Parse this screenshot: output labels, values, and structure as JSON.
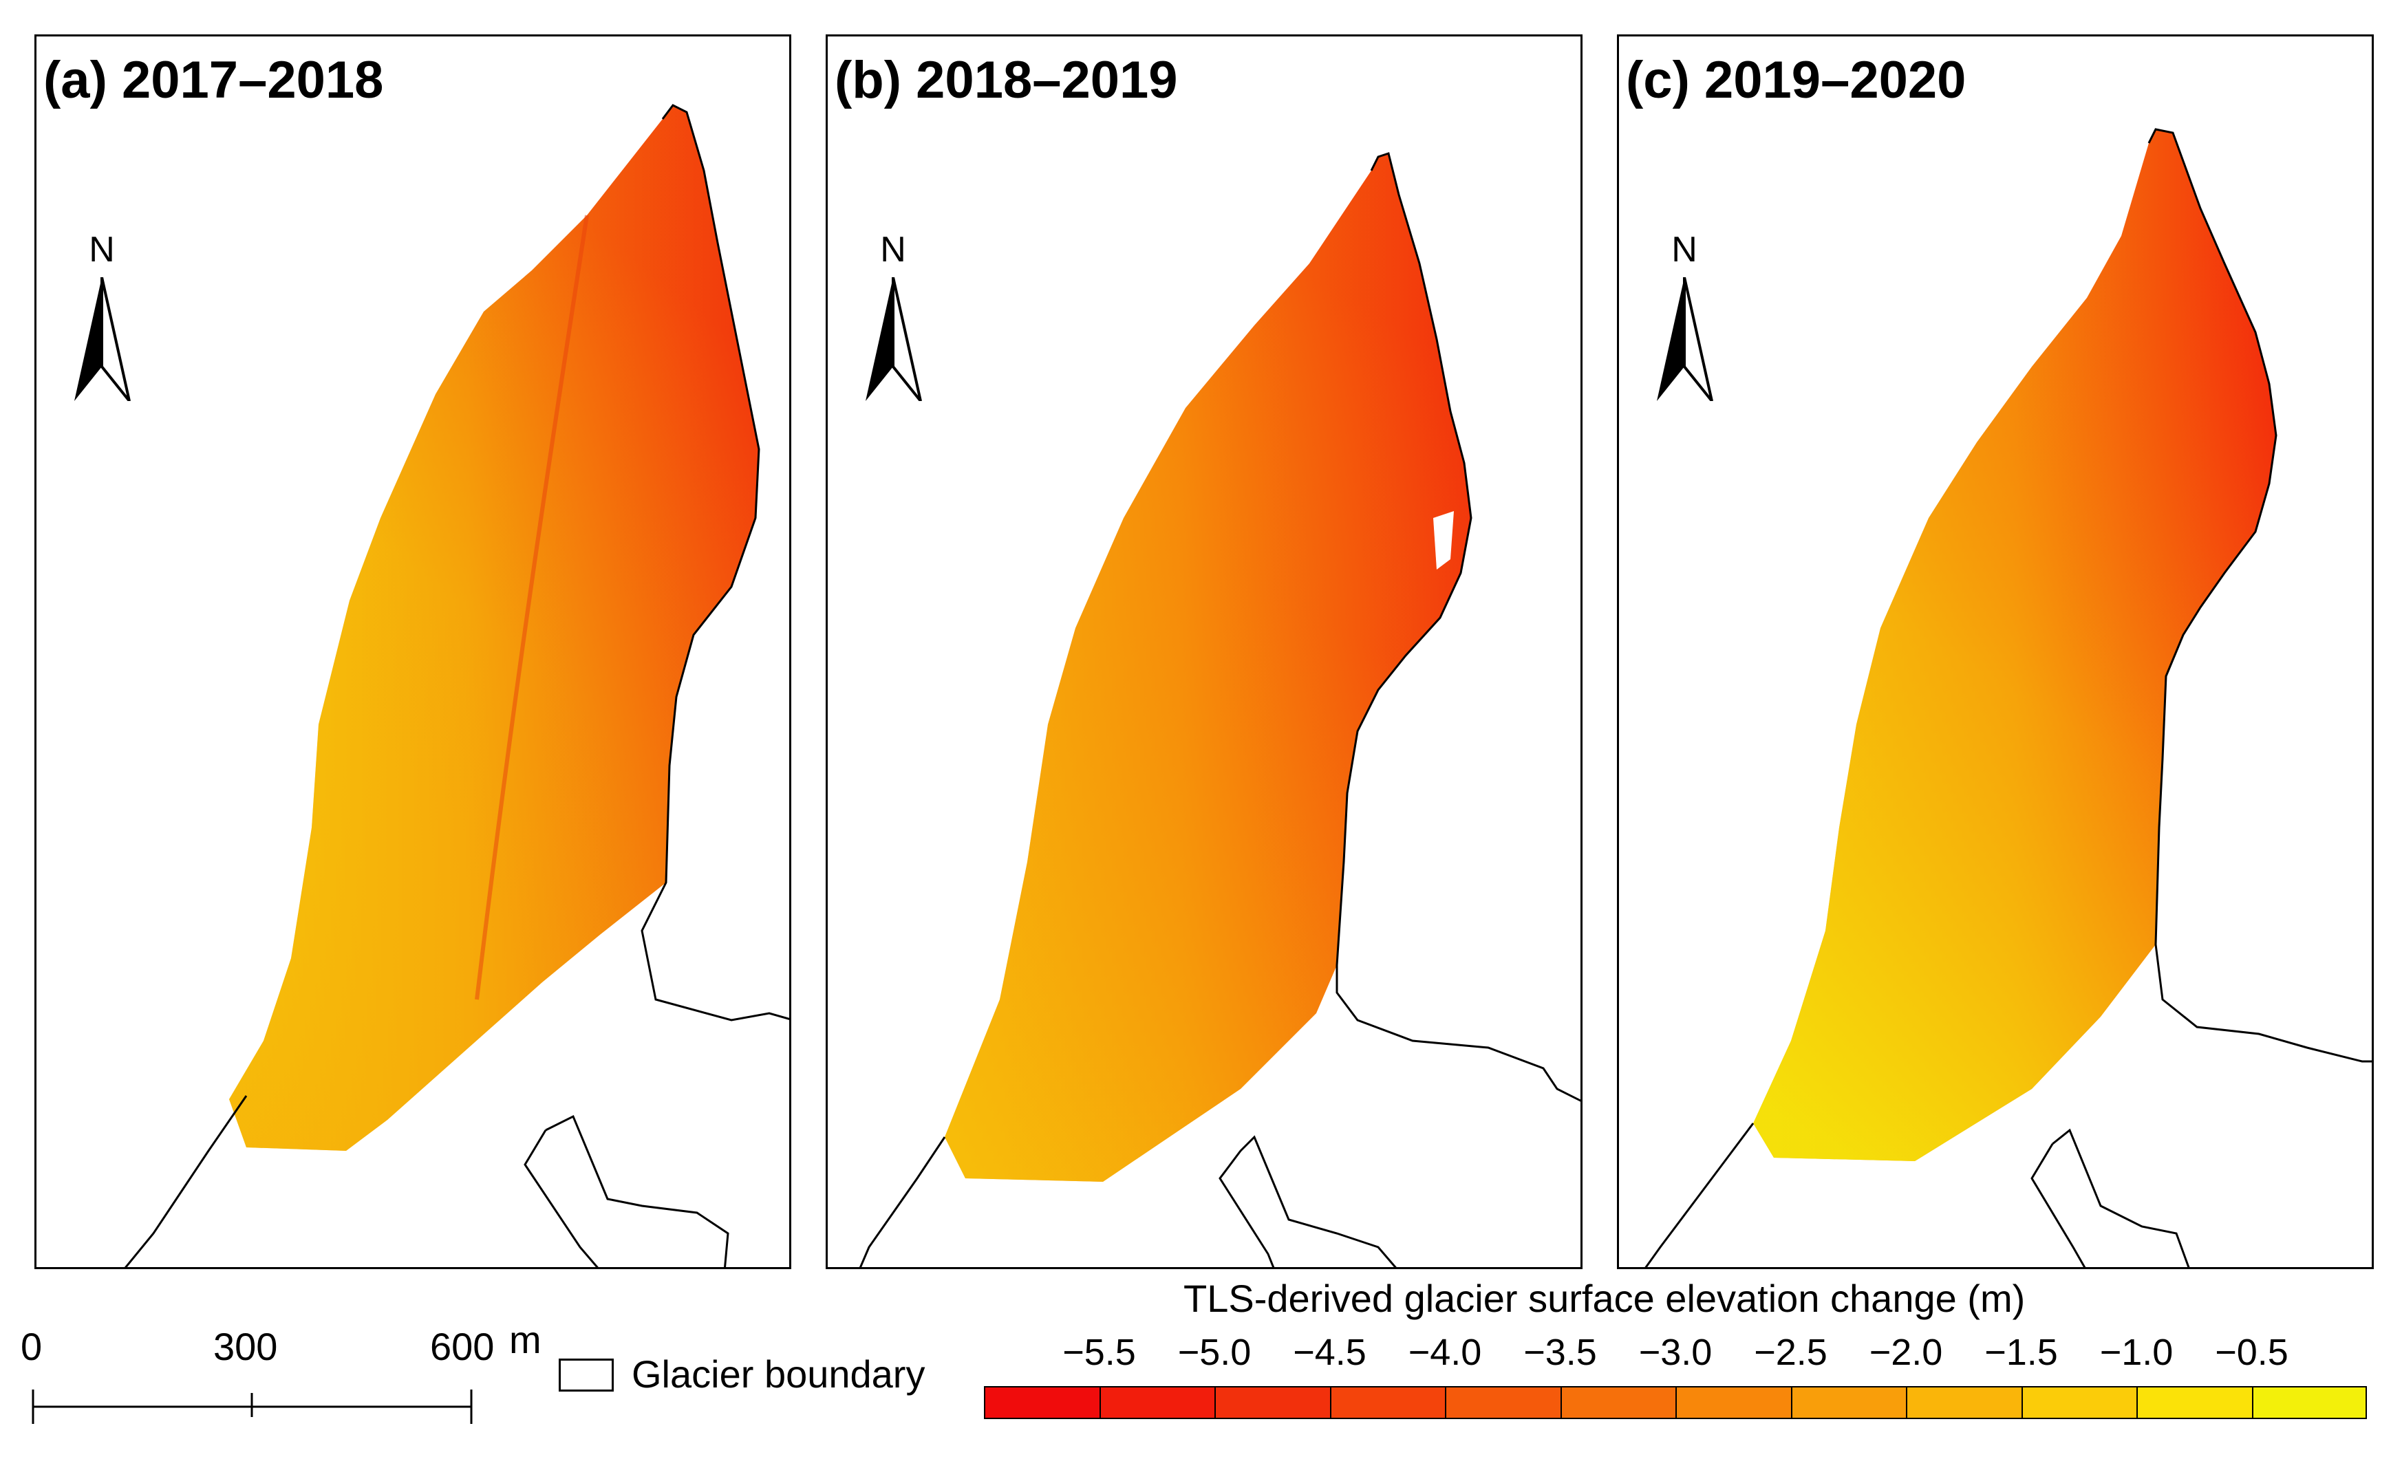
{
  "panels": [
    {
      "id": "a",
      "title": "(a) 2017–2018"
    },
    {
      "id": "b",
      "title": "(b) 2018–2019"
    },
    {
      "id": "c",
      "title": "(c) 2019–2020"
    }
  ],
  "north_arrow": {
    "label": "N"
  },
  "scale_bar": {
    "labels": [
      "0",
      "300",
      "600"
    ],
    "unit": "m"
  },
  "legend": {
    "boundary_label": "Glacier boundary"
  },
  "colorbar": {
    "title": "TLS-derived glacier surface elevation change (m)",
    "ticks": [
      "−5.5",
      "−5.0",
      "−4.5",
      "−4.0",
      "−3.5",
      "−3.0",
      "−2.5",
      "−2.0",
      "−1.5",
      "−1.0",
      "−0.5"
    ],
    "colors": [
      "#f00c0c",
      "#f21d0c",
      "#f2300c",
      "#f4440b",
      "#f55a0b",
      "#f6700b",
      "#f8870a",
      "#f99e0a",
      "#fab509",
      "#fbcc09",
      "#fbe208",
      "#f3f00a"
    ]
  },
  "colors": {
    "hot": "#f2220c",
    "mid": "#f77e0a",
    "cool": "#f5e60a",
    "boundary": "#000000"
  }
}
